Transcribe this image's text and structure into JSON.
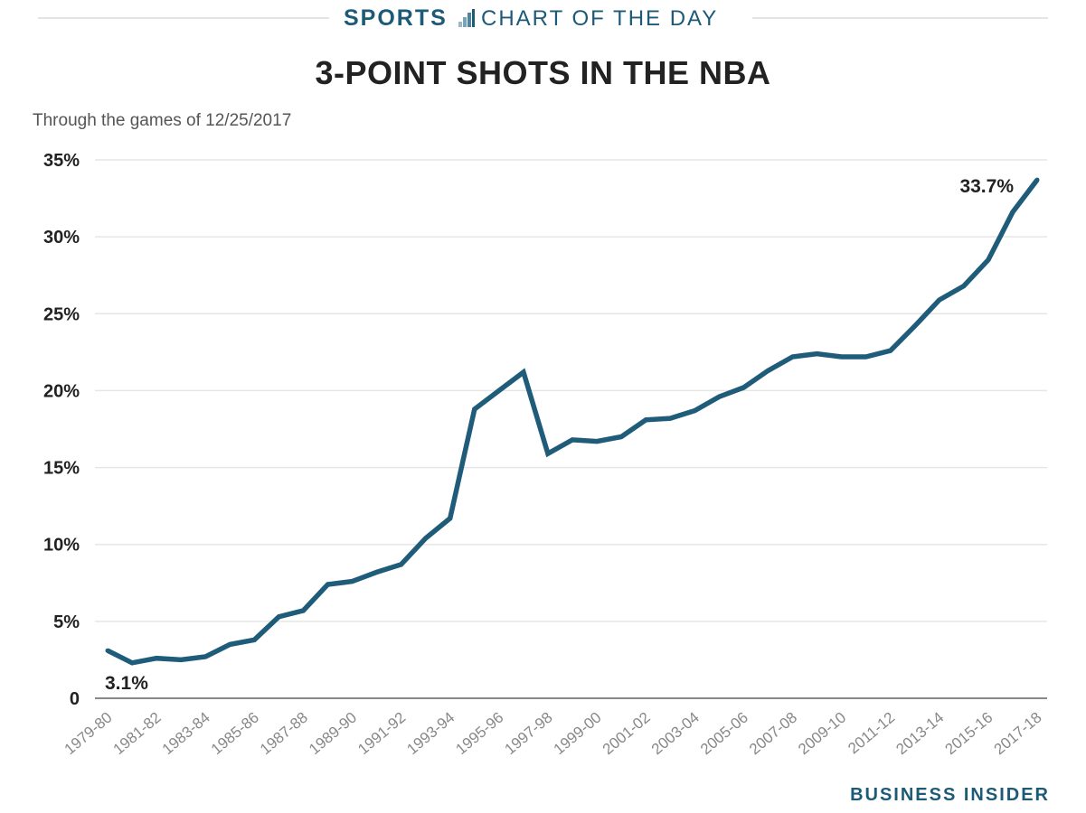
{
  "banner": {
    "section": "SPORTS",
    "series": "CHART OF THE DAY"
  },
  "source": "BUSINESS INSIDER",
  "colors": {
    "line": "#1f5c7a",
    "accent": "#1c5a78",
    "gridline": "#e6e6e6"
  },
  "chart_data": {
    "type": "line",
    "title": "3-POINT SHOTS IN THE NBA",
    "subtitle": "Through the games of 12/25/2017",
    "xlabel": "",
    "ylabel": "",
    "ylim": [
      0,
      35
    ],
    "yticks": [
      {
        "value": 0,
        "label": "0"
      },
      {
        "value": 5,
        "label": "5%"
      },
      {
        "value": 10,
        "label": "10%"
      },
      {
        "value": 15,
        "label": "15%"
      },
      {
        "value": 20,
        "label": "20%"
      },
      {
        "value": 25,
        "label": "25%"
      },
      {
        "value": 30,
        "label": "30%"
      },
      {
        "value": 35,
        "label": "35%"
      }
    ],
    "grid": true,
    "x": [
      "1979-80",
      "1980-81",
      "1981-82",
      "1982-83",
      "1983-84",
      "1984-85",
      "1985-86",
      "1986-87",
      "1987-88",
      "1988-89",
      "1989-90",
      "1990-91",
      "1991-92",
      "1992-93",
      "1993-94",
      "1994-95",
      "1995-96",
      "1996-97",
      "1997-98",
      "1998-99",
      "1999-00",
      "2000-01",
      "2001-02",
      "2002-03",
      "2003-04",
      "2004-05",
      "2005-06",
      "2006-07",
      "2007-08",
      "2008-09",
      "2009-10",
      "2010-11",
      "2011-12",
      "2012-13",
      "2013-14",
      "2014-15",
      "2015-16",
      "2016-17",
      "2017-18"
    ],
    "xtick_labels": [
      "1979-80",
      "1981-82",
      "1983-84",
      "1985-86",
      "1987-88",
      "1989-90",
      "1991-92",
      "1993-94",
      "1995-96",
      "1997-98",
      "1999-00",
      "2001-02",
      "2003-04",
      "2005-06",
      "2007-08",
      "2009-10",
      "2011-12",
      "2013-14",
      "2015-16",
      "2017-18"
    ],
    "series": [
      {
        "values": [
          3.1,
          2.3,
          2.6,
          2.5,
          2.7,
          3.5,
          3.8,
          5.3,
          5.7,
          7.4,
          7.6,
          8.2,
          8.7,
          10.4,
          11.7,
          18.8,
          20.0,
          21.2,
          15.9,
          16.8,
          16.7,
          17.0,
          18.1,
          18.2,
          18.7,
          19.6,
          20.2,
          21.3,
          22.2,
          22.4,
          22.2,
          22.2,
          22.6,
          24.2,
          25.9,
          26.8,
          28.5,
          31.6,
          33.7
        ]
      }
    ],
    "annotations": [
      {
        "index": 0,
        "text": "3.1%"
      },
      {
        "index": 38,
        "text": "33.7%"
      }
    ]
  }
}
